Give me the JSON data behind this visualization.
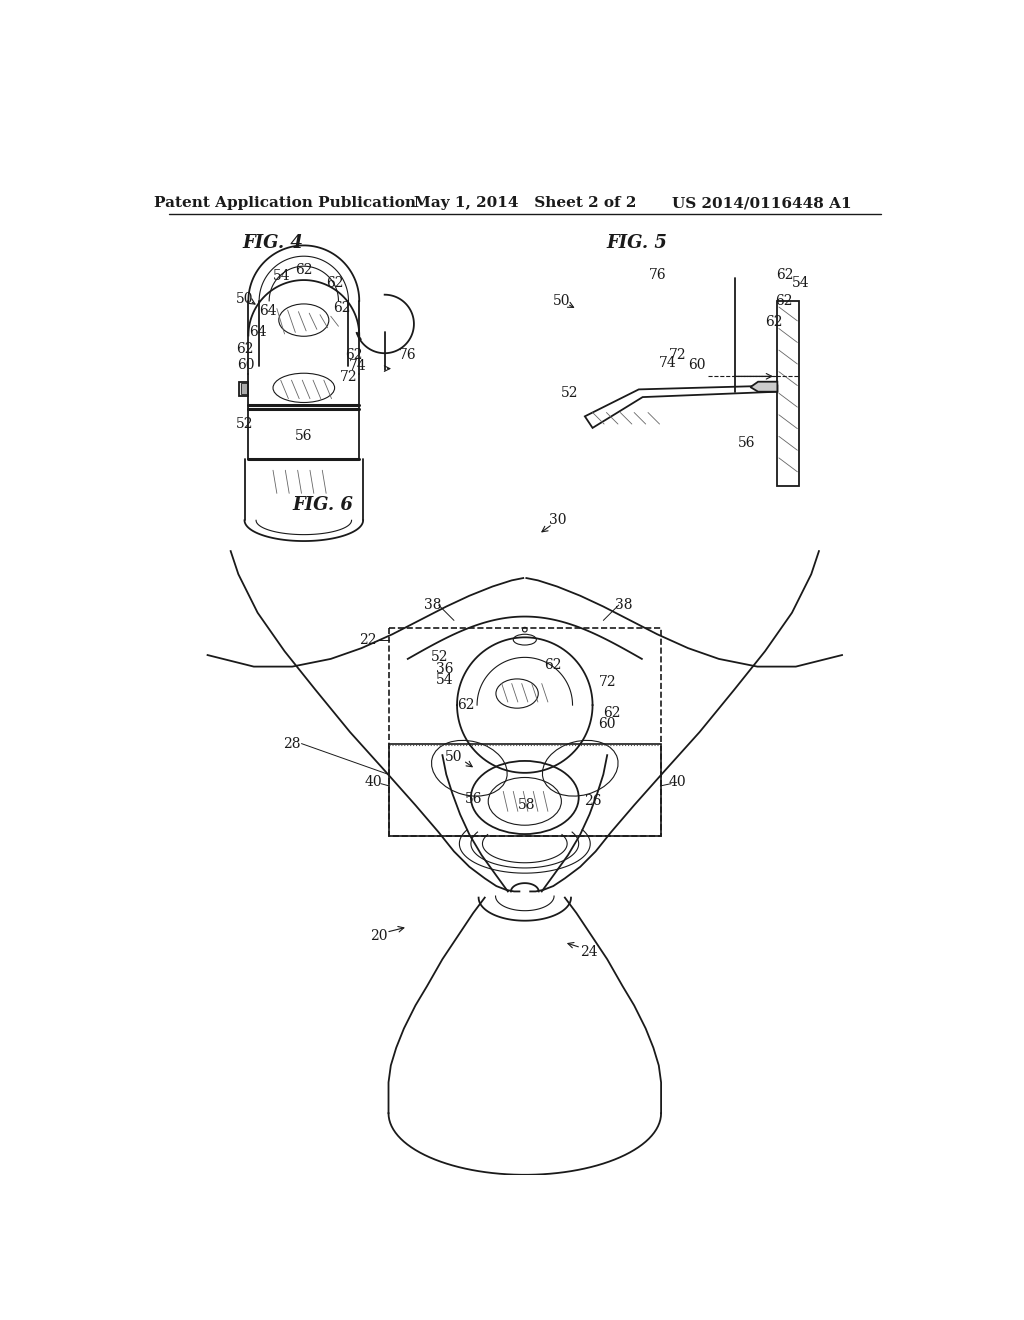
{
  "header_left": "Patent Application Publication",
  "header_mid": "May 1, 2014   Sheet 2 of 2",
  "header_right": "US 2014/0116448 A1",
  "bg_color": "#ffffff",
  "line_color": "#1a1a1a",
  "text_color": "#1a1a1a",
  "fig4_title": "FIG. 4",
  "fig5_title": "FIG. 5",
  "fig6_title": "FIG. 6"
}
